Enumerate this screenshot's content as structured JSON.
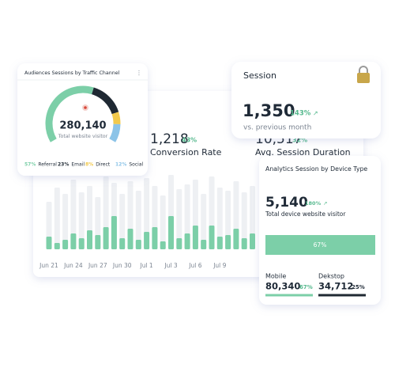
{
  "main_card": {
    "metrics": [
      {
        "value": "1,218",
        "change": "43%",
        "label": "Conversion Rate"
      },
      {
        "value": "10,517",
        "change": "32%",
        "label": "Avg. Session Duration"
      }
    ],
    "chart_data": {
      "type": "bar",
      "categories": [
        "Jun 21",
        null,
        null,
        "Jun 24",
        null,
        null,
        "Jun 27",
        null,
        null,
        "Jun 30",
        null,
        null,
        "Jul 1",
        null,
        null,
        "Jul 3",
        null,
        null,
        "Jul 6",
        null,
        null,
        "Jul 9",
        null,
        null,
        null,
        null
      ],
      "series": [
        {
          "color": "#eef0f3",
          "values": [
            60,
            78,
            70,
            88,
            72,
            80,
            66,
            92,
            84,
            70,
            86,
            74,
            90,
            80,
            68,
            94,
            76,
            82,
            88,
            70,
            92,
            78,
            74,
            86,
            72,
            80
          ]
        },
        {
          "color": "#7ccfa8",
          "values": [
            16,
            8,
            12,
            20,
            14,
            24,
            18,
            28,
            42,
            14,
            26,
            12,
            22,
            28,
            10,
            42,
            14,
            20,
            30,
            12,
            30,
            16,
            18,
            26,
            14,
            20
          ]
        }
      ]
    }
  },
  "traffic_card": {
    "title": "Audiences Sessions by Traffic Channel",
    "total": "280,140",
    "total_label": "Total website visitor",
    "chart_data": {
      "type": "gauge",
      "categories": [
        "Referral",
        "Email",
        "Direct",
        "Social"
      ],
      "values": [
        57,
        23,
        8,
        12
      ],
      "value_labels": [
        "57%",
        "23%",
        "8%",
        "12%"
      ],
      "colors": [
        "#7ccfa8",
        "#1f2933",
        "#f2c94c",
        "#8cc4e8"
      ]
    }
  },
  "session_card": {
    "title": "Session",
    "value": "1,350",
    "change": "143%",
    "note": "vs. previous month"
  },
  "device_card": {
    "title": "Analytics Session by Device Type",
    "value": "5,140",
    "change": "180%",
    "note": "Total device website visitor",
    "bar_label": "67%",
    "devices": [
      {
        "name": "Mobile",
        "value": "80,340",
        "share": "67%"
      },
      {
        "name": "Dekstop",
        "value": "34,712",
        "share": "25%"
      }
    ]
  }
}
